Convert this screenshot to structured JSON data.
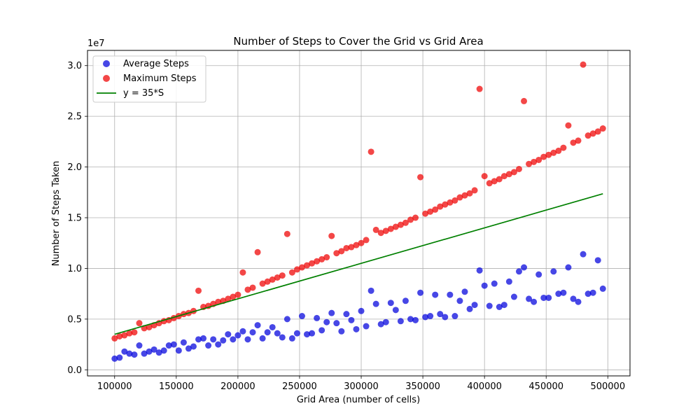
{
  "chart_data": {
    "type": "scatter",
    "title": "Number of Steps to Cover the Grid vs Grid Area",
    "xlabel": "Grid Area (number of cells)",
    "ylabel": "Number of Steps Taken",
    "y_multiplier_label": "1e7",
    "xlim": [
      78000,
      518000
    ],
    "ylim": [
      -0.06,
      3.15
    ],
    "x_ticks": [
      100000,
      150000,
      200000,
      250000,
      300000,
      350000,
      400000,
      450000,
      500000
    ],
    "x_tick_labels": [
      "100000",
      "150000",
      "200000",
      "250000",
      "300000",
      "350000",
      "400000",
      "450000",
      "500000"
    ],
    "y_ticks": [
      0.0,
      0.5,
      1.0,
      1.5,
      2.0,
      2.5,
      3.0
    ],
    "y_tick_labels": [
      "0.0",
      "0.5",
      "1.0",
      "1.5",
      "2.0",
      "2.5",
      "3.0"
    ],
    "grid": true,
    "legend_position": "top-left",
    "series": [
      {
        "name": "Average Steps",
        "kind": "scatter",
        "color": "#0000dd",
        "x": [
          100000,
          104000,
          108000,
          112000,
          116000,
          120000,
          124000,
          128000,
          132000,
          136000,
          140000,
          144000,
          148000,
          152000,
          156000,
          160000,
          164000,
          168000,
          172000,
          176000,
          180000,
          184000,
          188000,
          192000,
          196000,
          200000,
          204000,
          208000,
          212000,
          216000,
          220000,
          224000,
          228000,
          232000,
          236000,
          240000,
          244000,
          248000,
          252000,
          256000,
          260000,
          264000,
          268000,
          272000,
          276000,
          280000,
          284000,
          288000,
          292000,
          296000,
          300000,
          304000,
          308000,
          312000,
          316000,
          320000,
          324000,
          328000,
          332000,
          336000,
          340000,
          344000,
          348000,
          352000,
          356000,
          360000,
          364000,
          368000,
          372000,
          376000,
          380000,
          384000,
          388000,
          392000,
          396000,
          400000,
          404000,
          408000,
          412000,
          416000,
          420000,
          424000,
          428000,
          432000,
          436000,
          440000,
          444000,
          448000,
          452000,
          456000,
          460000,
          464000,
          468000,
          472000,
          476000,
          480000,
          484000,
          488000,
          492000,
          496000
        ],
        "y": [
          0.11,
          0.12,
          0.18,
          0.16,
          0.15,
          0.24,
          0.16,
          0.18,
          0.2,
          0.17,
          0.19,
          0.24,
          0.25,
          0.19,
          0.27,
          0.21,
          0.23,
          0.3,
          0.31,
          0.24,
          0.3,
          0.25,
          0.29,
          0.35,
          0.3,
          0.34,
          0.38,
          0.3,
          0.37,
          0.44,
          0.31,
          0.37,
          0.42,
          0.36,
          0.32,
          0.5,
          0.31,
          0.36,
          0.53,
          0.35,
          0.36,
          0.51,
          0.39,
          0.47,
          0.56,
          0.46,
          0.38,
          0.55,
          0.49,
          0.4,
          0.58,
          0.43,
          0.78,
          0.65,
          0.45,
          0.47,
          0.66,
          0.59,
          0.48,
          0.68,
          0.5,
          0.49,
          0.76,
          0.52,
          0.53,
          0.74,
          0.55,
          0.52,
          0.74,
          0.53,
          0.68,
          0.77,
          0.6,
          0.64,
          0.98,
          0.83,
          0.63,
          0.85,
          0.62,
          0.64,
          0.87,
          0.72,
          0.97,
          1.01,
          0.7,
          0.67,
          0.94,
          0.71,
          0.71,
          0.97,
          0.75,
          0.76,
          1.01,
          0.7,
          0.67,
          1.14,
          0.75,
          0.76,
          1.08,
          0.8
        ]
      },
      {
        "name": "Maximum Steps",
        "kind": "scatter",
        "color": "#ee0000",
        "x": [
          100000,
          104000,
          108000,
          112000,
          116000,
          120000,
          124000,
          128000,
          132000,
          136000,
          140000,
          144000,
          148000,
          152000,
          156000,
          160000,
          164000,
          168000,
          172000,
          176000,
          180000,
          184000,
          188000,
          192000,
          196000,
          200000,
          204000,
          208000,
          212000,
          216000,
          220000,
          224000,
          228000,
          232000,
          236000,
          240000,
          244000,
          248000,
          252000,
          256000,
          260000,
          264000,
          268000,
          272000,
          276000,
          280000,
          284000,
          288000,
          292000,
          296000,
          300000,
          304000,
          308000,
          312000,
          316000,
          320000,
          324000,
          328000,
          332000,
          336000,
          340000,
          344000,
          348000,
          352000,
          356000,
          360000,
          364000,
          368000,
          372000,
          376000,
          380000,
          384000,
          388000,
          392000,
          396000,
          400000,
          404000,
          408000,
          412000,
          416000,
          420000,
          424000,
          428000,
          432000,
          436000,
          440000,
          444000,
          448000,
          452000,
          456000,
          460000,
          464000,
          468000,
          472000,
          476000,
          480000,
          484000,
          488000,
          492000,
          496000
        ],
        "y": [
          0.31,
          0.33,
          0.34,
          0.36,
          0.37,
          0.46,
          0.41,
          0.42,
          0.44,
          0.46,
          0.48,
          0.49,
          0.51,
          0.53,
          0.55,
          0.56,
          0.58,
          0.78,
          0.62,
          0.63,
          0.65,
          0.67,
          0.68,
          0.7,
          0.72,
          0.74,
          0.96,
          0.79,
          0.81,
          1.16,
          0.85,
          0.87,
          0.89,
          0.91,
          0.93,
          1.34,
          0.96,
          0.99,
          1.01,
          1.03,
          1.05,
          1.07,
          1.09,
          1.11,
          1.32,
          1.15,
          1.17,
          1.2,
          1.21,
          1.23,
          1.25,
          1.28,
          2.15,
          1.38,
          1.35,
          1.37,
          1.39,
          1.41,
          1.43,
          1.45,
          1.48,
          1.5,
          1.9,
          1.54,
          1.56,
          1.58,
          1.61,
          1.63,
          1.65,
          1.67,
          1.7,
          1.72,
          1.74,
          1.77,
          2.77,
          1.91,
          1.84,
          1.86,
          1.88,
          1.91,
          1.93,
          1.95,
          1.98,
          2.65,
          2.03,
          2.05,
          2.07,
          2.1,
          2.12,
          2.14,
          2.16,
          2.19,
          2.41,
          2.24,
          2.26,
          3.01,
          2.31,
          2.33,
          2.35,
          2.38
        ]
      },
      {
        "name": "y = 35*S",
        "kind": "line",
        "color": "#008000",
        "x": [
          100000,
          496000
        ],
        "y": [
          0.35,
          1.736
        ]
      }
    ]
  }
}
